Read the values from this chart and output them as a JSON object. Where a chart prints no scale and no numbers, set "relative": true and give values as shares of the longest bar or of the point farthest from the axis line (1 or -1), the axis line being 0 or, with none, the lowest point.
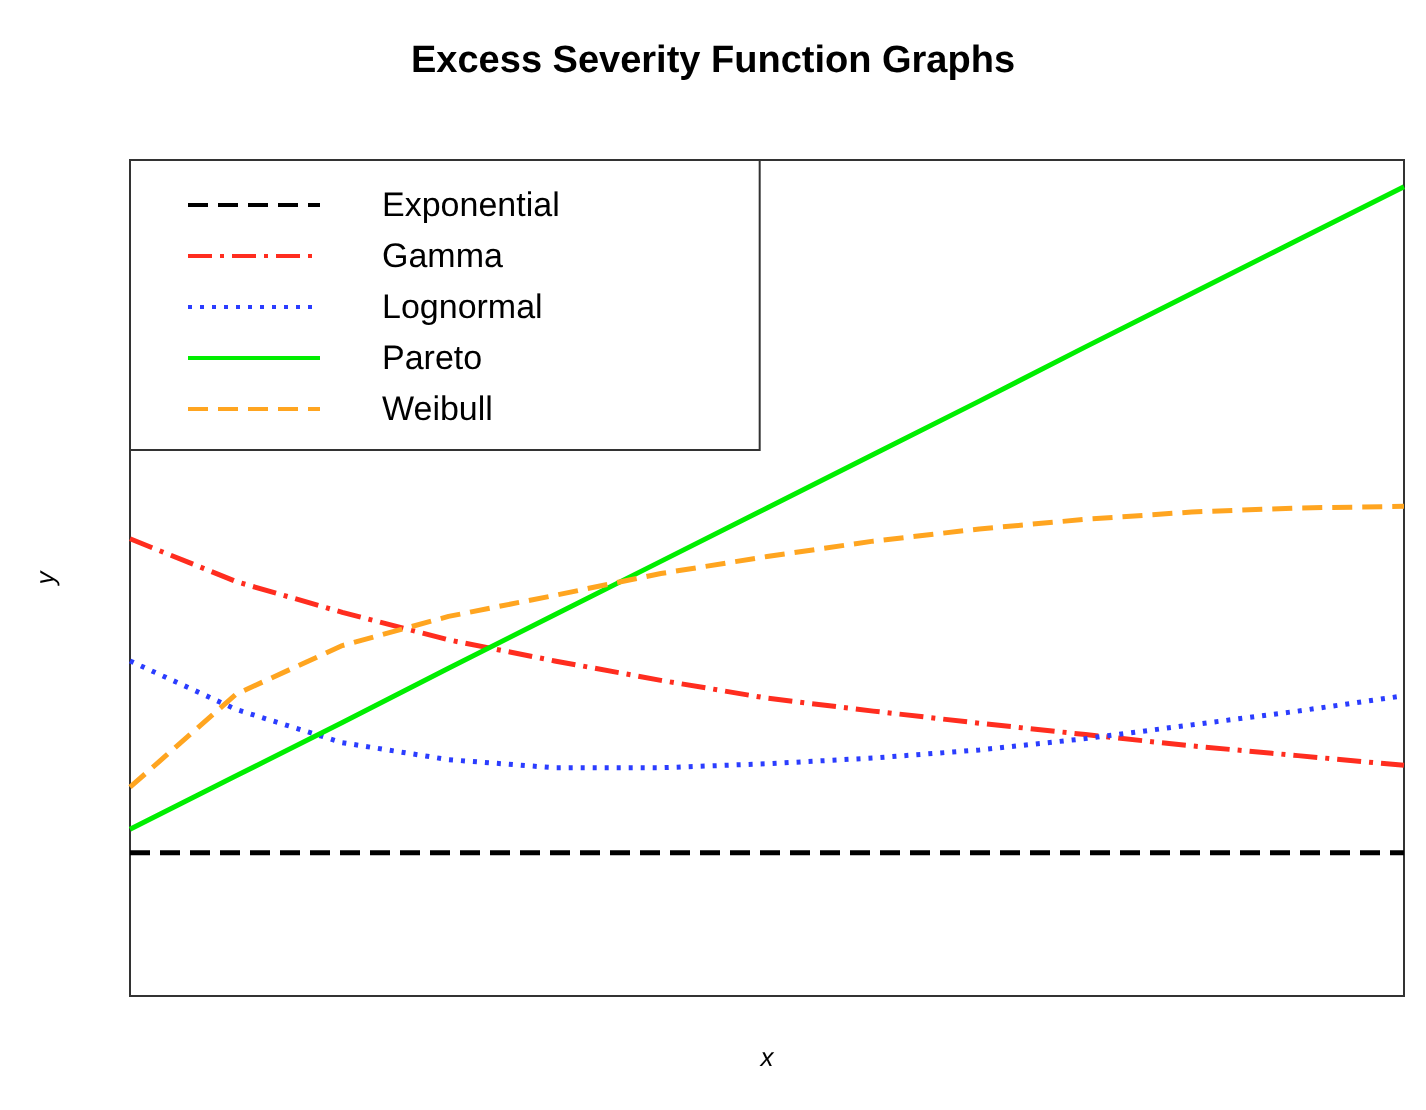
{
  "chart_data": {
    "type": "line",
    "title": "Excess Severity Function Graphs",
    "xlabel": "x",
    "ylabel": "y",
    "relative": true,
    "legend": "top left",
    "grid": false,
    "marker": "none",
    "categories": [
      null,
      null,
      null,
      null,
      null,
      null,
      null,
      null,
      null,
      null,
      null,
      null,
      null
    ],
    "series": [
      {
        "name": "Exponential",
        "color": "#000000",
        "line_style": "dashed",
        "values": [
          0.177,
          0.177,
          0.177,
          0.177,
          0.177,
          0.177,
          0.177,
          0.177,
          0.177,
          0.177,
          0.177,
          0.177,
          0.177
        ]
      },
      {
        "name": "Gamma",
        "color": "#ff2d1f",
        "line_style": "dashdot",
        "values": [
          0.565,
          0.512,
          0.474,
          0.44,
          0.414,
          0.39,
          0.368,
          0.352,
          0.337,
          0.323,
          0.309,
          0.297,
          0.285
        ]
      },
      {
        "name": "Lognormal",
        "color": "#2b3dff",
        "line_style": "dotted",
        "values": [
          0.414,
          0.354,
          0.313,
          0.292,
          0.282,
          0.282,
          0.287,
          0.294,
          0.304,
          0.318,
          0.335,
          0.352,
          0.371
        ]
      },
      {
        "name": "Pareto",
        "color": "#00ee00",
        "line_style": "solid",
        "values": [
          0.206,
          0.272,
          0.338,
          0.405,
          0.471,
          0.537,
          0.603,
          0.669,
          0.735,
          0.802,
          0.868,
          0.934,
          1.0
        ]
      },
      {
        "name": "Weibull",
        "color": "#ffa520",
        "line_style": "dashed",
        "values": [
          0.258,
          0.373,
          0.433,
          0.469,
          0.495,
          0.522,
          0.543,
          0.562,
          0.577,
          0.589,
          0.598,
          0.603,
          0.605
        ]
      }
    ]
  }
}
